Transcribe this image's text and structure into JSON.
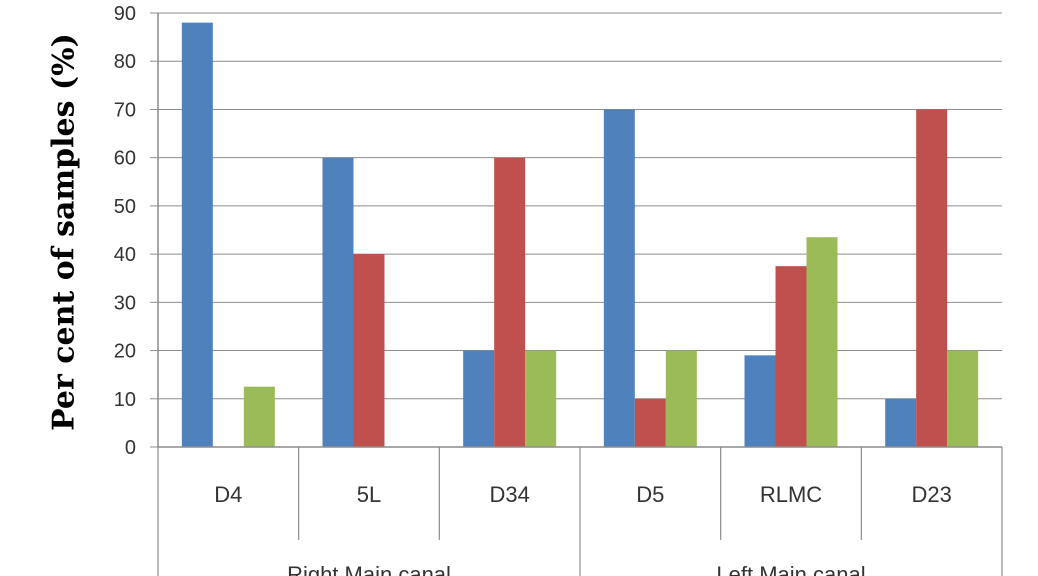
{
  "chart_data": {
    "type": "bar",
    "title": "",
    "xlabel": "",
    "ylabel": "Per cent of samples (%)",
    "ylim": [
      0,
      90
    ],
    "yticks": [
      0,
      10,
      20,
      30,
      40,
      50,
      60,
      70,
      80,
      90
    ],
    "grid": true,
    "categories": [
      "D4",
      "5L",
      "D34",
      "D5",
      "RLMC",
      "D23"
    ],
    "groups": [
      {
        "label": "Right Main canal",
        "categories": [
          "D4",
          "5L",
          "D34"
        ]
      },
      {
        "label": "Left Main canal",
        "categories": [
          "D5",
          "RLMC",
          "D23"
        ]
      }
    ],
    "series": [
      {
        "color": "#4F81BD",
        "values": [
          88,
          60,
          20,
          70,
          19,
          10
        ]
      },
      {
        "color": "#C0504D",
        "values": [
          0,
          40,
          60,
          10,
          37.5,
          70
        ]
      },
      {
        "color": "#9BBB59",
        "values": [
          12.5,
          0,
          20,
          20,
          43.5,
          20
        ]
      }
    ]
  }
}
